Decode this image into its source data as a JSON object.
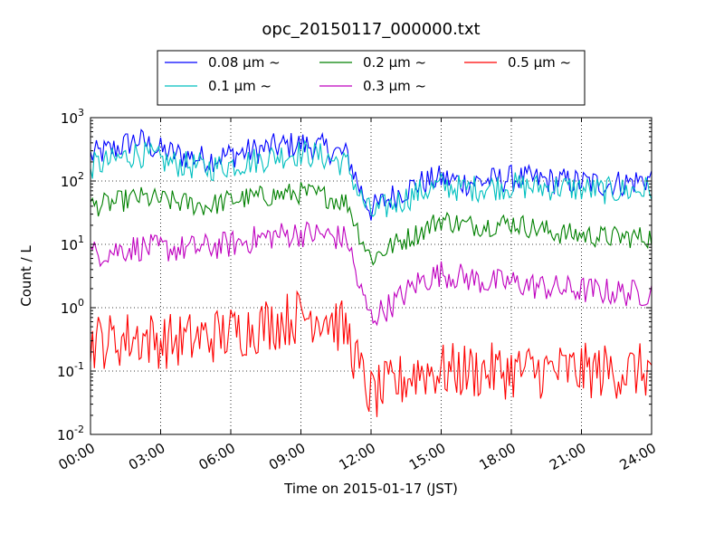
{
  "chart_data": {
    "type": "line",
    "title": "opc_20150117_000000.txt",
    "xlabel": "Time on 2015-01-17 (JST)",
    "ylabel": "Count / L",
    "x_unit": "hour",
    "xlim": [
      0,
      24
    ],
    "ylim": [
      0.01,
      1000
    ],
    "y_scale": "log",
    "grid": true,
    "legend_position": "top-center",
    "x_tick_labels": [
      "00:00",
      "03:00",
      "06:00",
      "09:00",
      "12:00",
      "15:00",
      "18:00",
      "21:00",
      "24:00"
    ],
    "y_tick_labels": [
      {
        "base": "10",
        "exp": "-2"
      },
      {
        "base": "10",
        "exp": "-1"
      },
      {
        "base": "10",
        "exp": "0"
      },
      {
        "base": "10",
        "exp": "1"
      },
      {
        "base": "10",
        "exp": "2"
      },
      {
        "base": "10",
        "exp": "3"
      }
    ],
    "x": [
      0,
      1,
      2,
      3,
      4,
      5,
      6,
      7,
      8,
      9,
      10,
      11,
      11.5,
      12,
      13,
      14,
      15,
      16,
      17,
      18,
      19,
      20,
      21,
      22,
      23,
      24
    ],
    "series": [
      {
        "name": "0.08 μm ~",
        "color": "#0000ff",
        "noise": 0.22,
        "values": [
          250,
          320,
          450,
          300,
          250,
          220,
          260,
          300,
          350,
          380,
          330,
          250,
          80,
          35,
          60,
          90,
          110,
          95,
          100,
          110,
          105,
          100,
          95,
          90,
          95,
          110
        ]
      },
      {
        "name": "0.1 μm ~",
        "color": "#00bfbf",
        "noise": 0.22,
        "values": [
          170,
          210,
          280,
          210,
          180,
          160,
          180,
          210,
          250,
          280,
          240,
          180,
          60,
          30,
          45,
          65,
          85,
          75,
          80,
          85,
          80,
          80,
          75,
          70,
          70,
          75
        ]
      },
      {
        "name": "0.2 μm ~",
        "color": "#008000",
        "noise": 0.18,
        "values": [
          40,
          45,
          55,
          50,
          45,
          40,
          50,
          55,
          60,
          65,
          58,
          45,
          15,
          6,
          10,
          15,
          25,
          20,
          20,
          22,
          18,
          15,
          14,
          13,
          13,
          13
        ]
      },
      {
        "name": "0.3 μm ~",
        "color": "#bf00bf",
        "noise": 0.22,
        "values": [
          7,
          8,
          9,
          8.5,
          8.5,
          9,
          10,
          12,
          14,
          15,
          14,
          12,
          2,
          0.7,
          1.2,
          2.5,
          3.5,
          3,
          2.5,
          2.5,
          2.2,
          2,
          1.9,
          1.8,
          1.7,
          1.7
        ]
      },
      {
        "name": "0.5 μm ~",
        "color": "#ff0000",
        "noise": 0.45,
        "values": [
          0.3,
          0.3,
          0.35,
          0.3,
          0.3,
          0.35,
          0.4,
          0.5,
          0.6,
          0.75,
          0.8,
          0.4,
          0.1,
          0.04,
          0.06,
          0.1,
          0.1,
          0.1,
          0.1,
          0.1,
          0.1,
          0.1,
          0.1,
          0.1,
          0.1,
          0.1
        ]
      }
    ]
  }
}
